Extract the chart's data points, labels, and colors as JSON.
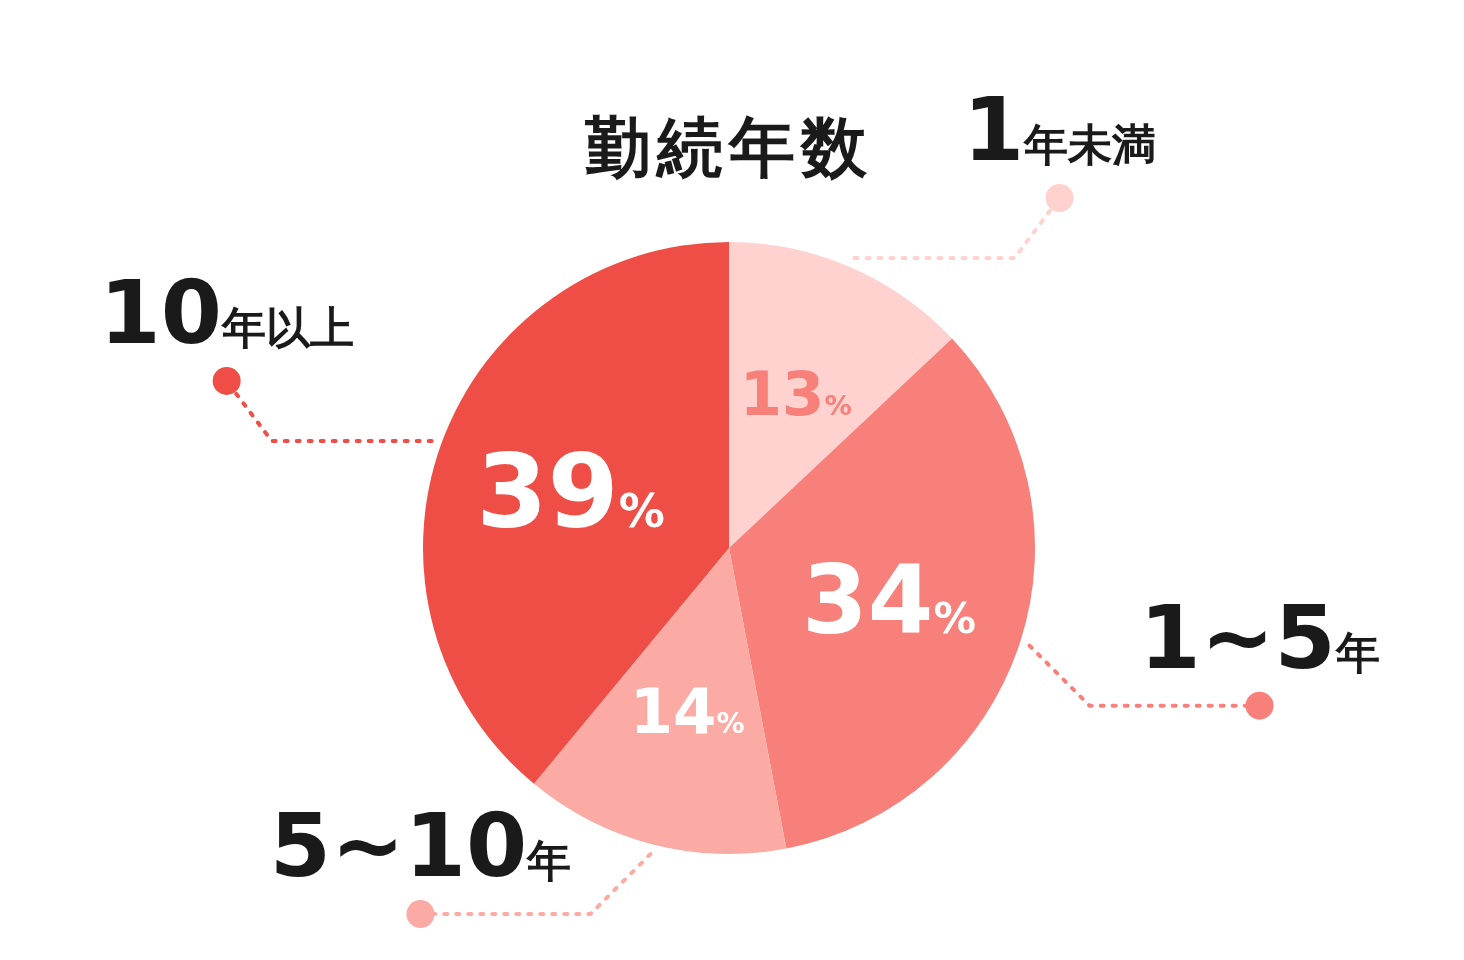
{
  "chart_data": {
    "type": "pie",
    "title": "勤続年数",
    "categories": [
      "1年未満",
      "1~5年",
      "5~10年",
      "10年以上"
    ],
    "values": [
      13,
      34,
      14,
      39
    ],
    "colors": [
      "#ffd1cf",
      "#f7807a",
      "#fbaaa4",
      "#ee4e45"
    ],
    "value_labels": [
      "13%",
      "34%",
      "14%",
      "39%"
    ]
  }
}
